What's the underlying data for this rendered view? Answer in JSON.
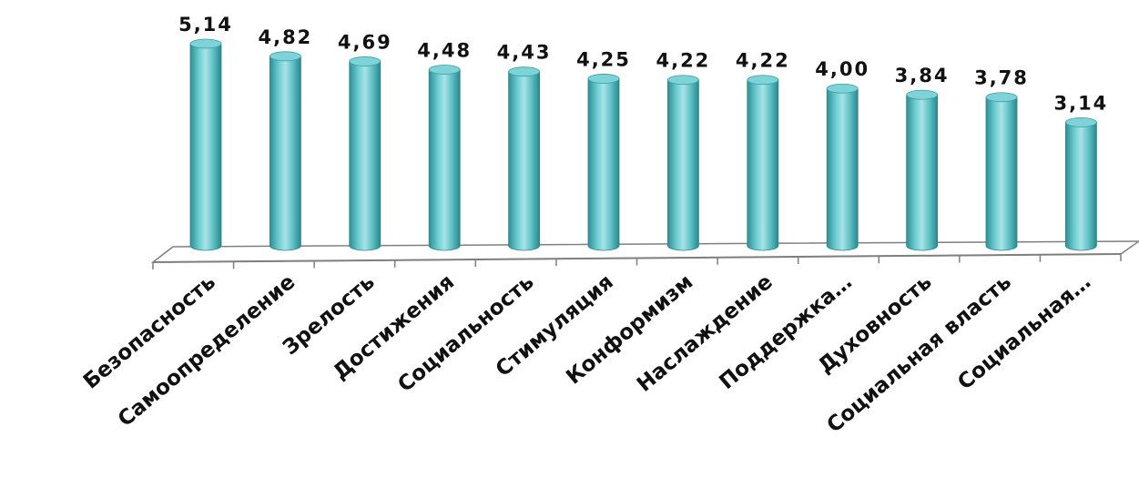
{
  "chart_data": {
    "type": "bar",
    "style": "3d-cylinder",
    "categories": [
      "Безопасность",
      "Самоопределение",
      "Зрелость",
      "Достижения",
      "Социальность",
      "Стимуляция",
      "Конформизм",
      "Наслаждение",
      "Поддержка…",
      "Духовность",
      "Социальная власть",
      "Социальная…"
    ],
    "values": [
      5.14,
      4.82,
      4.69,
      4.48,
      4.43,
      4.25,
      4.22,
      4.22,
      4.0,
      3.84,
      3.78,
      3.14
    ],
    "value_labels": [
      "5,14",
      "4,82",
      "4,69",
      "4,48",
      "4,43",
      "4,25",
      "4,22",
      "4,22",
      "4,00",
      "3,84",
      "3,78",
      "3,14"
    ],
    "title": "",
    "xlabel": "",
    "ylabel": "",
    "ylim": [
      0,
      5.14
    ],
    "grid": false,
    "colors": {
      "bar": "#5bbfc4",
      "bar_dark": "#2f8f95",
      "bar_light": "#a8e3e6",
      "top": "#7dd3d7",
      "axis": "#7f7f7f"
    }
  }
}
